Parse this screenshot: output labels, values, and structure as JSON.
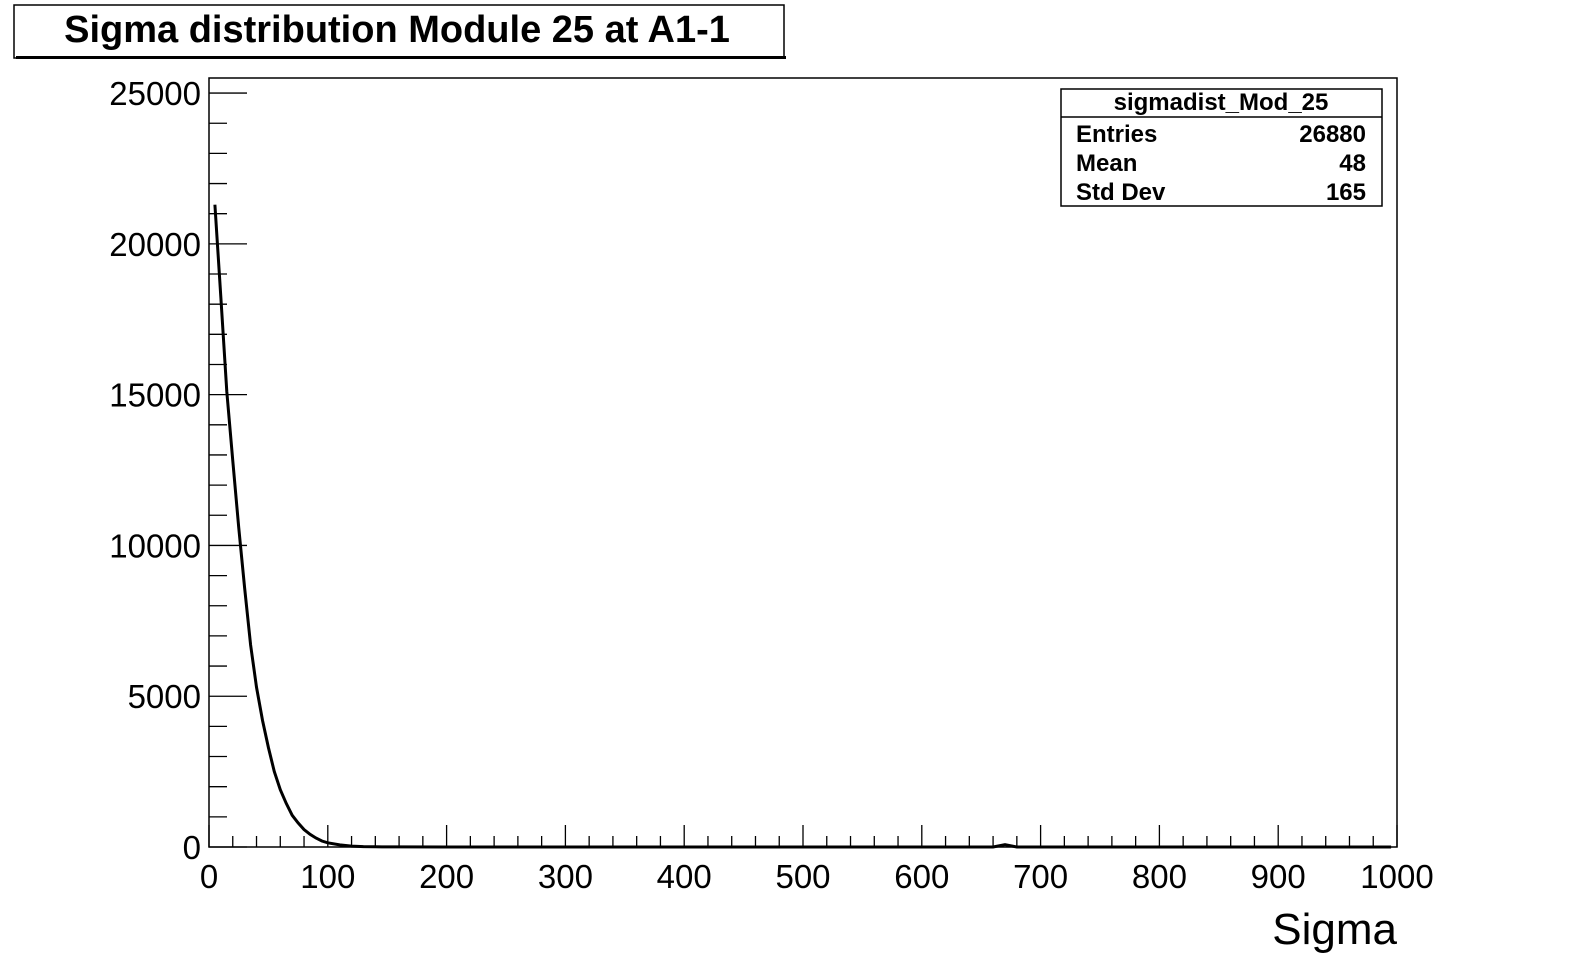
{
  "chart_data": {
    "type": "line",
    "title": "Sigma distribution Module 25 at A1-1",
    "xlabel": "Sigma",
    "ylabel": "",
    "xlim": [
      0,
      1000
    ],
    "ylim": [
      0,
      25500
    ],
    "x_ticks": [
      "0",
      "100",
      "200",
      "300",
      "400",
      "500",
      "600",
      "700",
      "800",
      "900",
      "1000"
    ],
    "y_ticks": [
      "0",
      "5000",
      "10000",
      "15000",
      "20000",
      "25000"
    ],
    "grid": false,
    "line_color": "#000000",
    "series": [
      {
        "name": "sigmadist_Mod_25",
        "x": [
          5,
          10,
          15,
          20,
          25,
          30,
          35,
          40,
          45,
          50,
          55,
          60,
          65,
          70,
          75,
          80,
          85,
          90,
          95,
          100,
          110,
          120,
          130,
          140,
          160,
          200,
          300,
          400,
          500,
          600,
          660,
          670,
          680,
          700,
          800,
          900,
          995
        ],
        "y": [
          21300,
          18200,
          15100,
          12800,
          10600,
          8600,
          6700,
          5300,
          4200,
          3300,
          2500,
          1900,
          1450,
          1050,
          800,
          580,
          420,
          300,
          200,
          140,
          70,
          30,
          12,
          5,
          2,
          0,
          0,
          0,
          0,
          0,
          0,
          80,
          0,
          0,
          0,
          0,
          0
        ]
      }
    ],
    "stats_box": {
      "name": "sigmadist_Mod_25",
      "position": "top-right",
      "rows": [
        {
          "label": "Entries",
          "value": "26880"
        },
        {
          "label": "Mean",
          "value": "48"
        },
        {
          "label": "Std Dev",
          "value": "165"
        }
      ]
    }
  }
}
